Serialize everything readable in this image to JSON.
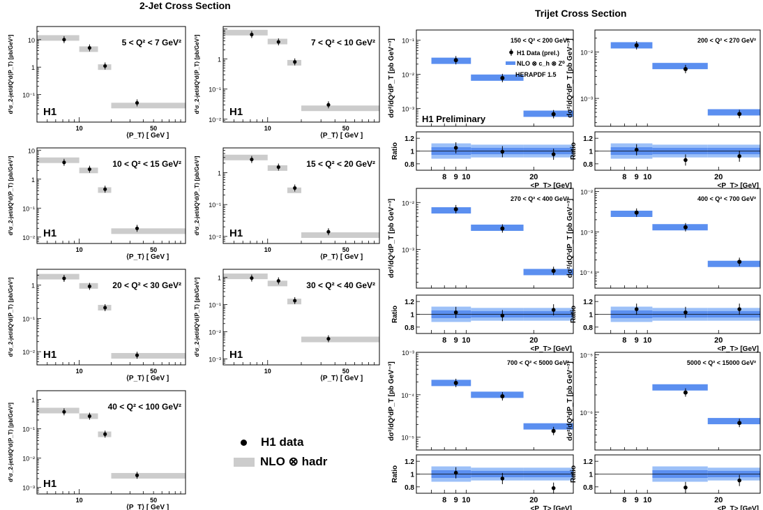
{
  "titles": {
    "left": "2-Jet Cross Section",
    "right": "Trijet Cross Section"
  },
  "legend": {
    "data_label": "H1 data",
    "nlo_label": "NLO ⊗ hadr"
  },
  "labels": {
    "h1": "H1",
    "h1_preliminary": "H1 Preliminary",
    "dijet_xlabel": "⟨P_T⟩ [ GeV ]",
    "dijet_ylabel": "d²σ_2-jet/dQ²d⟨P_T⟩ [pb/GeV³]",
    "trijet_xlabel": "<P_T> [GeV]",
    "trijet_ylabel": "dσ²/dQ²dP_T [pb GeV⁻³]",
    "ratio_label": "Ratio",
    "trijet_legend": [
      "H1 Data (prel.)",
      "NLO ⊗ c_h ⊗ Z⁰",
      "HERAPDF 1.5"
    ]
  },
  "colors": {
    "dijet_band": "#cccccc",
    "trijet_band": "#5b8ff0",
    "trijet_band_light": "#9cc0f8",
    "marker": "#000000"
  },
  "chart_data": [
    {
      "type": "scatter",
      "group": "2-Jet",
      "title": "5 < Q² < 7 GeV²",
      "xscale": "log",
      "yscale": "log",
      "xlim": [
        4,
        100
      ],
      "ylim": [
        0.01,
        30
      ],
      "xticks": [
        10,
        50
      ],
      "yticks": [
        0.1,
        1,
        10
      ],
      "ytick_labels": [
        "10⁻¹",
        "1",
        "10"
      ],
      "bins": [
        [
          4,
          10
        ],
        [
          10,
          15
        ],
        [
          15,
          20
        ],
        [
          20,
          100
        ]
      ],
      "nlo": [
        11.5,
        4.5,
        1.0,
        0.04
      ],
      "x": [
        7.2,
        12.5,
        17.5,
        35
      ],
      "data": [
        10.0,
        5.0,
        1.1,
        0.05
      ]
    },
    {
      "type": "scatter",
      "group": "2-Jet",
      "title": "7 < Q² < 10 GeV²",
      "xscale": "log",
      "yscale": "log",
      "xlim": [
        4,
        100
      ],
      "ylim": [
        0.008,
        12
      ],
      "xticks": [
        10,
        50
      ],
      "yticks": [
        0.01,
        0.1,
        1
      ],
      "ytick_labels": [
        "10⁻²",
        "10⁻¹",
        "1"
      ],
      "bins": [
        [
          4,
          10
        ],
        [
          10,
          15
        ],
        [
          15,
          20
        ],
        [
          20,
          100
        ]
      ],
      "nlo": [
        7.5,
        3.8,
        0.75,
        0.023
      ],
      "x": [
        7.2,
        12.5,
        17.5,
        35
      ],
      "data": [
        6.5,
        3.7,
        0.8,
        0.03
      ]
    },
    {
      "type": "scatter",
      "group": "2-Jet",
      "title": "10 < Q² < 15 GeV²",
      "xscale": "log",
      "yscale": "log",
      "xlim": [
        4,
        100
      ],
      "ylim": [
        0.006,
        12
      ],
      "xticks": [
        10,
        50
      ],
      "yticks": [
        0.01,
        0.1,
        1,
        10
      ],
      "ytick_labels": [
        "10⁻²",
        "10⁻¹",
        "1",
        "10"
      ],
      "bins": [
        [
          4,
          10
        ],
        [
          10,
          15
        ],
        [
          15,
          20
        ],
        [
          20,
          100
        ]
      ],
      "nlo": [
        4.5,
        2.0,
        0.42,
        0.016
      ],
      "x": [
        7.2,
        12.5,
        17.5,
        35
      ],
      "data": [
        3.8,
        2.2,
        0.45,
        0.02
      ]
    },
    {
      "type": "scatter",
      "group": "2-Jet",
      "title": "15 < Q² < 20 GeV²",
      "xscale": "log",
      "yscale": "log",
      "xlim": [
        4,
        100
      ],
      "ylim": [
        0.006,
        6
      ],
      "xticks": [
        10,
        50
      ],
      "yticks": [
        0.01,
        0.1,
        1
      ],
      "ytick_labels": [
        "10⁻²",
        "10⁻¹",
        "1"
      ],
      "bins": [
        [
          4,
          10
        ],
        [
          10,
          15
        ],
        [
          15,
          20
        ],
        [
          20,
          100
        ]
      ],
      "nlo": [
        3.0,
        1.4,
        0.28,
        0.011
      ],
      "x": [
        7.2,
        12.5,
        17.5,
        35
      ],
      "data": [
        2.6,
        1.5,
        0.33,
        0.014
      ]
    },
    {
      "type": "scatter",
      "group": "2-Jet",
      "title": "20 < Q² < 30 GeV²",
      "xscale": "log",
      "yscale": "log",
      "xlim": [
        4,
        100
      ],
      "ylim": [
        0.004,
        3
      ],
      "xticks": [
        10,
        50
      ],
      "yticks": [
        0.01,
        0.1,
        1
      ],
      "ytick_labels": [
        "10⁻²",
        "10⁻¹",
        "1"
      ],
      "bins": [
        [
          4,
          10
        ],
        [
          10,
          15
        ],
        [
          15,
          20
        ],
        [
          20,
          100
        ]
      ],
      "nlo": [
        1.8,
        0.95,
        0.21,
        0.0075
      ],
      "x": [
        7.2,
        12.5,
        17.5,
        35
      ],
      "data": [
        1.6,
        0.92,
        0.21,
        0.0078
      ]
    },
    {
      "type": "scatter",
      "group": "2-Jet",
      "title": "30 < Q² < 40 GeV²",
      "xscale": "log",
      "yscale": "log",
      "xlim": [
        4,
        100
      ],
      "ylim": [
        0.0006,
        2
      ],
      "xticks": [
        10,
        50
      ],
      "yticks": [
        0.001,
        0.01,
        0.1,
        1
      ],
      "ytick_labels": [
        "10⁻³",
        "10⁻²",
        "10⁻¹",
        "1"
      ],
      "bins": [
        [
          4,
          10
        ],
        [
          10,
          15
        ],
        [
          15,
          20
        ],
        [
          20,
          100
        ]
      ],
      "nlo": [
        1.1,
        0.6,
        0.13,
        0.0052
      ],
      "x": [
        7.2,
        12.5,
        17.5,
        35
      ],
      "data": [
        0.95,
        0.75,
        0.14,
        0.0055
      ]
    },
    {
      "type": "scatter",
      "group": "2-Jet",
      "title": "40 < Q² < 100 GeV²",
      "xscale": "log",
      "yscale": "log",
      "xlim": [
        4,
        100
      ],
      "ylim": [
        0.0006,
        2
      ],
      "xticks": [
        10,
        50
      ],
      "yticks": [
        0.001,
        0.01,
        0.1,
        1
      ],
      "ytick_labels": [
        "10⁻³",
        "10⁻²",
        "10⁻¹",
        "1"
      ],
      "bins": [
        [
          4,
          10
        ],
        [
          10,
          15
        ],
        [
          15,
          20
        ],
        [
          20,
          100
        ]
      ],
      "nlo": [
        0.42,
        0.27,
        0.065,
        0.0025
      ],
      "x": [
        7.2,
        12.5,
        17.5,
        35
      ],
      "data": [
        0.38,
        0.27,
        0.066,
        0.0026
      ]
    },
    {
      "type": "scatter",
      "group": "Trijet",
      "title": "150 < Q² < 200 GeV²",
      "xscale": "log",
      "yscale": "log",
      "xlim": [
        6,
        30
      ],
      "ylim": [
        0.0003,
        0.2
      ],
      "xticks": [
        8,
        9,
        10,
        20
      ],
      "yticks": [
        0.001,
        0.01,
        0.1
      ],
      "ytick_labels": [
        "10⁻³",
        "10⁻²",
        "10⁻¹"
      ],
      "bins": [
        [
          7,
          10.5
        ],
        [
          10.5,
          18
        ],
        [
          18,
          30
        ]
      ],
      "nlo": [
        0.025,
        0.008,
        0.0007
      ],
      "x": [
        9,
        14.5,
        24.5
      ],
      "data": [
        0.026,
        0.0078,
        0.00068
      ],
      "ratio": {
        "ylim": [
          0.7,
          1.3
        ],
        "yticks": [
          0.8,
          1,
          1.2
        ],
        "values": [
          1.05,
          0.99,
          0.95
        ],
        "band": [
          0.12,
          0.1,
          0.1
        ]
      }
    },
    {
      "type": "scatter",
      "group": "Trijet",
      "title": "200 < Q² < 270 GeV²",
      "xscale": "log",
      "yscale": "log",
      "xlim": [
        6,
        30
      ],
      "ylim": [
        0.00025,
        0.03
      ],
      "xticks": [
        8,
        9,
        10,
        20
      ],
      "yticks": [
        0.001,
        0.01
      ],
      "ytick_labels": [
        "10⁻³",
        "10⁻²"
      ],
      "bins": [
        [
          7,
          10.5
        ],
        [
          10.5,
          18
        ],
        [
          18,
          30
        ]
      ],
      "nlo": [
        0.014,
        0.005,
        0.0005
      ],
      "x": [
        9,
        14.5,
        24.5
      ],
      "data": [
        0.014,
        0.0043,
        0.00046
      ],
      "ratio": {
        "ylim": [
          0.7,
          1.3
        ],
        "yticks": [
          0.8,
          1,
          1.2
        ],
        "values": [
          1.02,
          0.86,
          0.92
        ],
        "band": [
          0.12,
          0.1,
          0.1
        ]
      }
    },
    {
      "type": "scatter",
      "group": "Trijet",
      "title": "270 < Q² < 400 GeV²",
      "xscale": "log",
      "yscale": "log",
      "xlim": [
        6,
        30
      ],
      "ylim": [
        0.00015,
        0.02
      ],
      "xticks": [
        8,
        9,
        10,
        20
      ],
      "yticks": [
        0.001,
        0.01
      ],
      "ytick_labels": [
        "10⁻³",
        "10⁻²"
      ],
      "bins": [
        [
          7,
          10.5
        ],
        [
          10.5,
          18
        ],
        [
          18,
          30
        ]
      ],
      "nlo": [
        0.0068,
        0.0029,
        0.00033
      ],
      "x": [
        9,
        14.5,
        24.5
      ],
      "data": [
        0.0072,
        0.0028,
        0.00035
      ],
      "ratio": {
        "ylim": [
          0.7,
          1.3
        ],
        "yticks": [
          0.8,
          1,
          1.2
        ],
        "values": [
          1.03,
          0.98,
          1.07
        ],
        "band": [
          0.12,
          0.1,
          0.1
        ]
      }
    },
    {
      "type": "scatter",
      "group": "Trijet",
      "title": "400 < Q² < 700 GeV²",
      "xscale": "log",
      "yscale": "log",
      "xlim": [
        6,
        30
      ],
      "ylim": [
        4e-05,
        0.012
      ],
      "xticks": [
        8,
        9,
        10,
        20
      ],
      "yticks": [
        0.0001,
        0.001,
        0.01
      ],
      "ytick_labels": [
        "10⁻⁴",
        "10⁻³",
        "10⁻²"
      ],
      "bins": [
        [
          7,
          10.5
        ],
        [
          10.5,
          18
        ],
        [
          18,
          30
        ]
      ],
      "nlo": [
        0.0028,
        0.0013,
        0.00016
      ],
      "x": [
        9,
        14.5,
        24.5
      ],
      "data": [
        0.003,
        0.0013,
        0.00018
      ],
      "ratio": {
        "ylim": [
          0.7,
          1.3
        ],
        "yticks": [
          0.8,
          1,
          1.2
        ],
        "values": [
          1.08,
          1.03,
          1.08
        ],
        "band": [
          0.12,
          0.1,
          0.1
        ]
      }
    },
    {
      "type": "scatter",
      "group": "Trijet",
      "title": "700 < Q² < 5000 GeV²",
      "xscale": "log",
      "yscale": "log",
      "xlim": [
        6,
        30
      ],
      "ylim": [
        5e-06,
        0.001
      ],
      "xticks": [
        8,
        9,
        10,
        20
      ],
      "yticks": [
        1e-05,
        0.0001,
        0.001
      ],
      "ytick_labels": [
        "10⁻⁵",
        "10⁻⁴",
        "10⁻³"
      ],
      "bins": [
        [
          7,
          10.5
        ],
        [
          10.5,
          18
        ],
        [
          18,
          30
        ]
      ],
      "nlo": [
        0.00019,
        0.0001,
        1.8e-05
      ],
      "x": [
        9,
        14.5,
        24.5
      ],
      "data": [
        0.00019,
        9.2e-05,
        1.4e-05
      ],
      "ratio": {
        "ylim": [
          0.7,
          1.3
        ],
        "yticks": [
          0.8,
          1,
          1.2
        ],
        "values": [
          1.02,
          0.93,
          0.78
        ],
        "band": [
          0.12,
          0.1,
          0.1
        ]
      }
    },
    {
      "type": "scatter",
      "group": "Trijet",
      "title": "5000 < Q² < 15000 GeV²",
      "xscale": "log",
      "yscale": "log",
      "xlim": [
        6,
        30
      ],
      "ylim": [
        2.2e-07,
        1.1e-05
      ],
      "xticks": [
        8,
        9,
        10,
        20
      ],
      "yticks": [
        1e-06,
        1e-05
      ],
      "ytick_labels": [
        "10⁻⁶",
        "10⁻⁵"
      ],
      "bins": [
        [
          10.5,
          18
        ],
        [
          18,
          30
        ]
      ],
      "nlo": [
        2.7e-06,
        7e-07
      ],
      "x": [
        14.5,
        24.5
      ],
      "data": [
        2.2e-06,
        6.5e-07
      ],
      "ratio": {
        "ylim": [
          0.7,
          1.3
        ],
        "yticks": [
          0.8,
          1,
          1.2
        ],
        "values": [
          0.79,
          0.9
        ],
        "band": [
          0.12,
          0.1
        ]
      }
    }
  ]
}
